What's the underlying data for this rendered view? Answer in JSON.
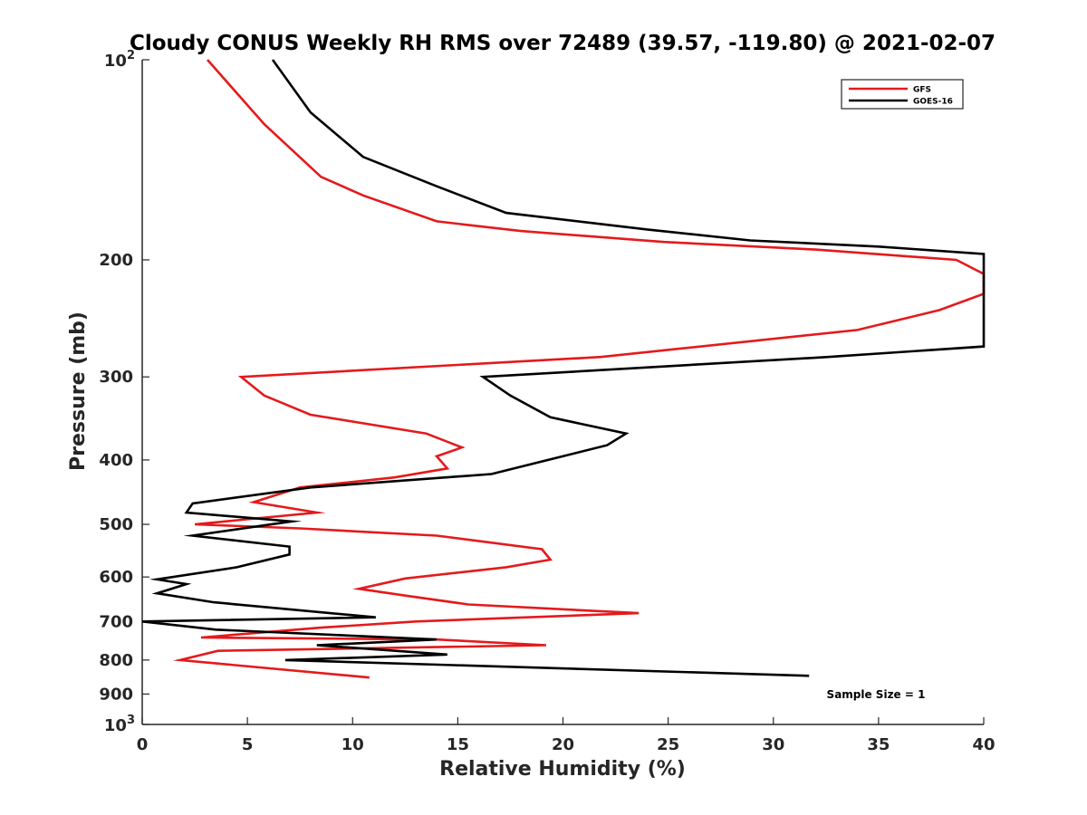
{
  "chart_data": {
    "type": "line",
    "title": "Cloudy CONUS Weekly RH RMS over 72489 (39.57, -119.80) @ 2021-02-07",
    "xlabel": "Relative Humidity (%)",
    "ylabel": "Pressure (mb)",
    "xlim": [
      0,
      40
    ],
    "ylim": [
      100,
      1000
    ],
    "y_scale": "log",
    "y_reversed": true,
    "grid": false,
    "legend_position": "top-right",
    "x_ticks": [
      0,
      5,
      10,
      15,
      20,
      25,
      30,
      35,
      40
    ],
    "x_tick_labels": [
      "0",
      "5",
      "10",
      "15",
      "20",
      "25",
      "30",
      "35",
      "40"
    ],
    "y_ticks": [
      200,
      300,
      400,
      500,
      600,
      700,
      800,
      900
    ],
    "y_tick_labels": [
      "200",
      "300",
      "400",
      "500",
      "600",
      "700",
      "800",
      "900"
    ],
    "y_end_labels": {
      "top": {
        "base": "10",
        "exp": "2"
      },
      "bottom": {
        "base": "10",
        "exp": "3"
      }
    },
    "annotation": "Sample Size = 1",
    "series": [
      {
        "name": "GFS",
        "color": "#e41a1c",
        "points": [
          [
            3.1,
            100
          ],
          [
            5.8,
            125
          ],
          [
            8.5,
            150
          ],
          [
            10.5,
            160
          ],
          [
            14.0,
            175
          ],
          [
            18.0,
            181
          ],
          [
            24.8,
            188
          ],
          [
            32.0,
            193
          ],
          [
            38.7,
            200
          ],
          [
            40.0,
            210
          ],
          [
            40.0,
            225
          ],
          [
            37.9,
            238
          ],
          [
            34.0,
            255
          ],
          [
            21.8,
            280
          ],
          [
            4.7,
            300
          ],
          [
            5.8,
            320
          ],
          [
            8.0,
            342
          ],
          [
            13.5,
            365
          ],
          [
            15.2,
            383
          ],
          [
            14.0,
            395
          ],
          [
            14.5,
            412
          ],
          [
            12.0,
            425
          ],
          [
            7.5,
            440
          ],
          [
            5.3,
            463
          ],
          [
            8.3,
            480
          ],
          [
            2.5,
            500
          ],
          [
            7.5,
            507
          ],
          [
            14.0,
            520
          ],
          [
            19.0,
            545
          ],
          [
            19.4,
            565
          ],
          [
            17.3,
            580
          ],
          [
            12.5,
            603
          ],
          [
            10.3,
            625
          ],
          [
            12.5,
            640
          ],
          [
            15.5,
            660
          ],
          [
            23.6,
            680
          ],
          [
            13.0,
            700
          ],
          [
            8.5,
            715
          ],
          [
            2.8,
            740
          ],
          [
            14.0,
            745
          ],
          [
            19.2,
            760
          ],
          [
            3.6,
            775
          ],
          [
            1.8,
            800
          ],
          [
            10.8,
            850
          ]
        ]
      },
      {
        "name": "GOES-16",
        "color": "#000000",
        "points": [
          [
            6.2,
            100
          ],
          [
            8.0,
            120
          ],
          [
            10.5,
            140
          ],
          [
            14.0,
            155
          ],
          [
            17.3,
            170
          ],
          [
            24.0,
            180
          ],
          [
            28.9,
            187
          ],
          [
            35.0,
            191
          ],
          [
            40.0,
            196
          ],
          [
            40.0,
            270
          ],
          [
            32.6,
            280
          ],
          [
            16.2,
            300
          ],
          [
            17.5,
            320
          ],
          [
            19.4,
            345
          ],
          [
            23.0,
            365
          ],
          [
            22.1,
            380
          ],
          [
            16.6,
            420
          ],
          [
            8.0,
            440
          ],
          [
            2.4,
            465
          ],
          [
            2.1,
            480
          ],
          [
            7.1,
            495
          ],
          [
            2.4,
            520
          ],
          [
            7.0,
            540
          ],
          [
            7.0,
            555
          ],
          [
            4.5,
            580
          ],
          [
            0.7,
            605
          ],
          [
            2.1,
            615
          ],
          [
            0.7,
            635
          ],
          [
            3.4,
            655
          ],
          [
            11.1,
            690
          ],
          [
            0.0,
            700
          ],
          [
            3.5,
            720
          ],
          [
            14.0,
            745
          ],
          [
            8.3,
            760
          ],
          [
            14.5,
            785
          ],
          [
            6.8,
            800
          ],
          [
            31.7,
            845
          ]
        ]
      }
    ]
  }
}
